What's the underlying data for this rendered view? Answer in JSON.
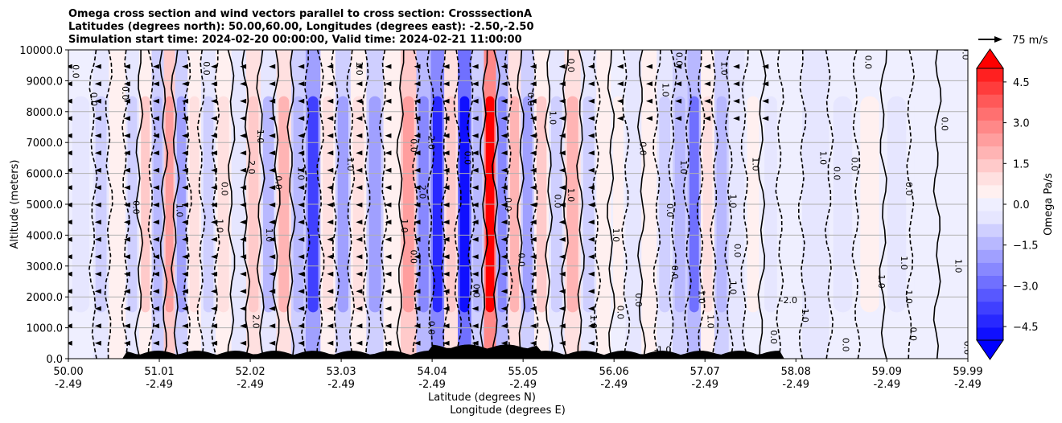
{
  "chart_data": {
    "type": "contourf",
    "title_lines": [
      "Omega cross section and wind vectors parallel to cross section: CrosssectionA",
      "Latitudes (degrees north): 50.00,60.00, Longitudes (degrees east): -2.50,-2.50",
      "Simulation start time: 2024-02-20 00:00:00, Valid time: 2024-02-21 11:00:00"
    ],
    "ylabel": "Altitude (meters)",
    "xlabel_lines": [
      "Latitude (degrees N)",
      "Longitude (degrees E)"
    ],
    "ylim": [
      0,
      10000
    ],
    "xlim": [
      50.0,
      59.99
    ],
    "y_ticks": [
      0,
      1000,
      2000,
      3000,
      4000,
      5000,
      6000,
      7000,
      8000,
      9000,
      10000
    ],
    "y_tick_labels": [
      "0.0",
      "1000.0",
      "2000.0",
      "3000.0",
      "4000.0",
      "5000.0",
      "6000.0",
      "7000.0",
      "8000.0",
      "9000.0",
      "10000.0"
    ],
    "x_ticks": [
      {
        "lat": 50.0,
        "lat_label": "50.00",
        "lon_label": "-2.49"
      },
      {
        "lat": 51.01,
        "lat_label": "51.01",
        "lon_label": "-2.49"
      },
      {
        "lat": 52.02,
        "lat_label": "52.02",
        "lon_label": "-2.49"
      },
      {
        "lat": 53.03,
        "lat_label": "53.03",
        "lon_label": "-2.49"
      },
      {
        "lat": 54.04,
        "lat_label": "54.04",
        "lon_label": "-2.49"
      },
      {
        "lat": 55.05,
        "lat_label": "55.05",
        "lon_label": "-2.49"
      },
      {
        "lat": 56.06,
        "lat_label": "56.06",
        "lon_label": "-2.49"
      },
      {
        "lat": 57.07,
        "lat_label": "57.07",
        "lon_label": "-2.49"
      },
      {
        "lat": 58.08,
        "lat_label": "58.08",
        "lon_label": "-2.49"
      },
      {
        "lat": 59.09,
        "lat_label": "59.09",
        "lon_label": "-2.49"
      },
      {
        "lat": 59.99,
        "lat_label": "59.99",
        "lon_label": "-2.49"
      }
    ],
    "grid": "horizontal",
    "colorbar": {
      "label": "Omega Pa/s",
      "range": [
        -5.0,
        5.0
      ],
      "extend": "both",
      "ticks": [
        4.5,
        3.0,
        1.5,
        0.0,
        -1.5,
        -3.0,
        -4.5
      ],
      "tick_labels": [
        "4.5",
        "3.0",
        "1.5",
        "0.0",
        "−1.5",
        "−3.0",
        "−4.5"
      ],
      "colors_low_to_high": [
        "#1010ff",
        "#2828ff",
        "#4040ff",
        "#5858ff",
        "#7070ff",
        "#8888ff",
        "#a0a0ff",
        "#b8b8ff",
        "#cfcfff",
        "#e6e6ff",
        "#efefff",
        "#fff0f0",
        "#ffe0e0",
        "#ffcaca",
        "#ffb4b4",
        "#ff9e9e",
        "#ff8888",
        "#ff7070",
        "#ff5858",
        "#ff3c3c",
        "#ff2020"
      ],
      "under_color": "#0000ff",
      "over_color": "#ff0000"
    },
    "quiver_key": {
      "label": "75 m/s",
      "speed": 75
    },
    "omega_columns": [
      {
        "lat": 50.2,
        "omega": -0.3
      },
      {
        "lat": 50.35,
        "omega": -0.8
      },
      {
        "lat": 50.55,
        "omega": 0.6
      },
      {
        "lat": 50.72,
        "omega": -0.9
      },
      {
        "lat": 50.85,
        "omega": 1.2
      },
      {
        "lat": 51.0,
        "omega": -1.3
      },
      {
        "lat": 51.12,
        "omega": 2.6
      },
      {
        "lat": 51.25,
        "omega": -1.7
      },
      {
        "lat": 51.4,
        "omega": 1.0
      },
      {
        "lat": 51.55,
        "omega": -1.1
      },
      {
        "lat": 51.72,
        "omega": 0.8
      },
      {
        "lat": 51.9,
        "omega": -0.6
      },
      {
        "lat": 52.05,
        "omega": 1.6
      },
      {
        "lat": 52.22,
        "omega": -1.2
      },
      {
        "lat": 52.4,
        "omega": 2.1
      },
      {
        "lat": 52.55,
        "omega": -1.5
      },
      {
        "lat": 52.72,
        "omega": -3.6
      },
      {
        "lat": 52.88,
        "omega": 0.9
      },
      {
        "lat": 53.05,
        "omega": -1.8
      },
      {
        "lat": 53.22,
        "omega": 1.1
      },
      {
        "lat": 53.4,
        "omega": -2.0
      },
      {
        "lat": 53.6,
        "omega": 0.7
      },
      {
        "lat": 53.78,
        "omega": 2.3
      },
      {
        "lat": 53.95,
        "omega": -2.6
      },
      {
        "lat": 54.1,
        "omega": -4.3
      },
      {
        "lat": 54.25,
        "omega": 1.4
      },
      {
        "lat": 54.4,
        "omega": -4.9
      },
      {
        "lat": 54.55,
        "omega": -1.6
      },
      {
        "lat": 54.68,
        "omega": 5.2
      },
      {
        "lat": 54.82,
        "omega": -2.2
      },
      {
        "lat": 54.95,
        "omega": 1.9
      },
      {
        "lat": 55.1,
        "omega": -1.8
      },
      {
        "lat": 55.25,
        "omega": 1.2
      },
      {
        "lat": 55.42,
        "omega": -0.9
      },
      {
        "lat": 55.6,
        "omega": 2.0
      },
      {
        "lat": 55.78,
        "omega": -1.1
      },
      {
        "lat": 55.95,
        "omega": 0.5
      },
      {
        "lat": 56.1,
        "omega": 0.3
      },
      {
        "lat": 56.28,
        "omega": -0.6
      },
      {
        "lat": 56.45,
        "omega": 0.6
      },
      {
        "lat": 56.62,
        "omega": -0.8
      },
      {
        "lat": 56.8,
        "omega": -1.6
      },
      {
        "lat": 56.95,
        "omega": -3.0
      },
      {
        "lat": 57.1,
        "omega": 0.8
      },
      {
        "lat": 57.25,
        "omega": -1.3
      },
      {
        "lat": 57.42,
        "omega": -0.7
      },
      {
        "lat": 57.6,
        "omega": 0.4
      },
      {
        "lat": 57.8,
        "omega": -0.3
      },
      {
        "lat": 58.0,
        "omega": 0.2
      },
      {
        "lat": 58.3,
        "omega": -0.5
      },
      {
        "lat": 58.6,
        "omega": -0.4
      },
      {
        "lat": 58.9,
        "omega": 0.3
      },
      {
        "lat": 59.2,
        "omega": -0.3
      },
      {
        "lat": 59.5,
        "omega": 0.2
      },
      {
        "lat": 59.8,
        "omega": -0.2
      }
    ],
    "contour_labels": [
      {
        "text": "0.0",
        "lat": 50.05,
        "alt": 9300
      },
      {
        "text": "0.0",
        "lat": 50.25,
        "alt": 8400
      },
      {
        "text": "0.0",
        "lat": 50.6,
        "alt": 8600
      },
      {
        "text": "0.0",
        "lat": 50.72,
        "alt": 4900
      },
      {
        "text": "1.0",
        "lat": 51.2,
        "alt": 4800
      },
      {
        "text": "0.0",
        "lat": 51.7,
        "alt": 5500
      },
      {
        "text": "1.0",
        "lat": 51.65,
        "alt": 4300
      },
      {
        "text": "0.0",
        "lat": 51.5,
        "alt": 9400
      },
      {
        "text": "2.0",
        "lat": 52.0,
        "alt": 6200
      },
      {
        "text": "1.0",
        "lat": 52.1,
        "alt": 7200
      },
      {
        "text": "0.0",
        "lat": 52.3,
        "alt": 5700
      },
      {
        "text": "1.0",
        "lat": 52.55,
        "alt": 6000
      },
      {
        "text": "1.0",
        "lat": 52.2,
        "alt": 4000
      },
      {
        "text": "2.0",
        "lat": 52.05,
        "alt": 1200
      },
      {
        "text": "1.0",
        "lat": 53.1,
        "alt": 6300
      },
      {
        "text": "1.0",
        "lat": 53.2,
        "alt": 9400
      },
      {
        "text": "1.0",
        "lat": 53.7,
        "alt": 4300
      },
      {
        "text": "0.0",
        "lat": 53.8,
        "alt": 6900
      },
      {
        "text": "0.0",
        "lat": 53.8,
        "alt": 3300
      },
      {
        "text": "2.0",
        "lat": 54.0,
        "alt": 7000
      },
      {
        "text": "2.0",
        "lat": 53.9,
        "alt": 5400
      },
      {
        "text": "0.0",
        "lat": 54.0,
        "alt": 1000
      },
      {
        "text": "0.0",
        "lat": 54.4,
        "alt": 6500
      },
      {
        "text": "0.0",
        "lat": 54.5,
        "alt": 2200
      },
      {
        "text": "0.0",
        "lat": 54.85,
        "alt": 5000
      },
      {
        "text": "0.0",
        "lat": 55.1,
        "alt": 8400
      },
      {
        "text": "1.0",
        "lat": 55.35,
        "alt": 7800
      },
      {
        "text": "0.0",
        "lat": 55.4,
        "alt": 5100
      },
      {
        "text": "1.0",
        "lat": 55.55,
        "alt": 5300
      },
      {
        "text": "0.0",
        "lat": 55.55,
        "alt": 9500
      },
      {
        "text": "0.0",
        "lat": 55.0,
        "alt": 3200
      },
      {
        "text": "1.0",
        "lat": 55.8,
        "alt": 1200
      },
      {
        "text": "1.0",
        "lat": 56.05,
        "alt": 4000
      },
      {
        "text": "0.0",
        "lat": 56.1,
        "alt": 1500
      },
      {
        "text": "0.0",
        "lat": 56.3,
        "alt": 1900
      },
      {
        "text": "0.0",
        "lat": 56.35,
        "alt": 6800
      },
      {
        "text": "1.0",
        "lat": 56.6,
        "alt": 8700
      },
      {
        "text": "0.0",
        "lat": 56.75,
        "alt": 9700
      },
      {
        "text": "1.0",
        "lat": 56.8,
        "alt": 6200
      },
      {
        "text": "0.0",
        "lat": 56.65,
        "alt": 4800
      },
      {
        "text": "0.0",
        "lat": 56.7,
        "alt": 2800
      },
      {
        "text": "1.0",
        "lat": 57.0,
        "alt": 2000
      },
      {
        "text": "1.0",
        "lat": 57.1,
        "alt": 1200
      },
      {
        "text": "1.0",
        "lat": 57.25,
        "alt": 9400
      },
      {
        "text": "1.0",
        "lat": 57.35,
        "alt": 5100
      },
      {
        "text": "1.0",
        "lat": 57.6,
        "alt": 6300
      },
      {
        "text": "0.0",
        "lat": 57.4,
        "alt": 3500
      },
      {
        "text": "1.0",
        "lat": 57.35,
        "alt": 2300
      },
      {
        "text": "1.0",
        "lat": 58.15,
        "alt": 1400
      },
      {
        "text": "0.0",
        "lat": 57.8,
        "alt": 700
      },
      {
        "text": "0.0",
        "lat": 58.6,
        "alt": 450
      },
      {
        "text": "1.0",
        "lat": 58.35,
        "alt": 6500
      },
      {
        "text": "0.0",
        "lat": 58.5,
        "alt": 6000
      },
      {
        "text": "0.0",
        "lat": 58.85,
        "alt": 9600
      },
      {
        "text": "0.0",
        "lat": 58.7,
        "alt": 6300
      },
      {
        "text": "1.0",
        "lat": 59.0,
        "alt": 2500
      },
      {
        "text": "1.0",
        "lat": 59.25,
        "alt": 3100
      },
      {
        "text": "0.0",
        "lat": 59.3,
        "alt": 5500
      },
      {
        "text": "1.0",
        "lat": 59.3,
        "alt": 2000
      },
      {
        "text": "0.0",
        "lat": 59.7,
        "alt": 7600
      },
      {
        "text": "0.0",
        "lat": 59.35,
        "alt": 800
      },
      {
        "text": "0.0",
        "lat": 59.95,
        "alt": 350
      },
      {
        "text": "1.0",
        "lat": 59.85,
        "alt": 3000
      },
      {
        "text": "0.0",
        "lat": 59.93,
        "alt": 9900
      }
    ],
    "special_labels": [
      {
        "text": "-1.0",
        "lat": 56.6,
        "alt": 200
      },
      {
        "text": "-2.0",
        "lat": 58.0,
        "alt": 1800
      }
    ]
  }
}
